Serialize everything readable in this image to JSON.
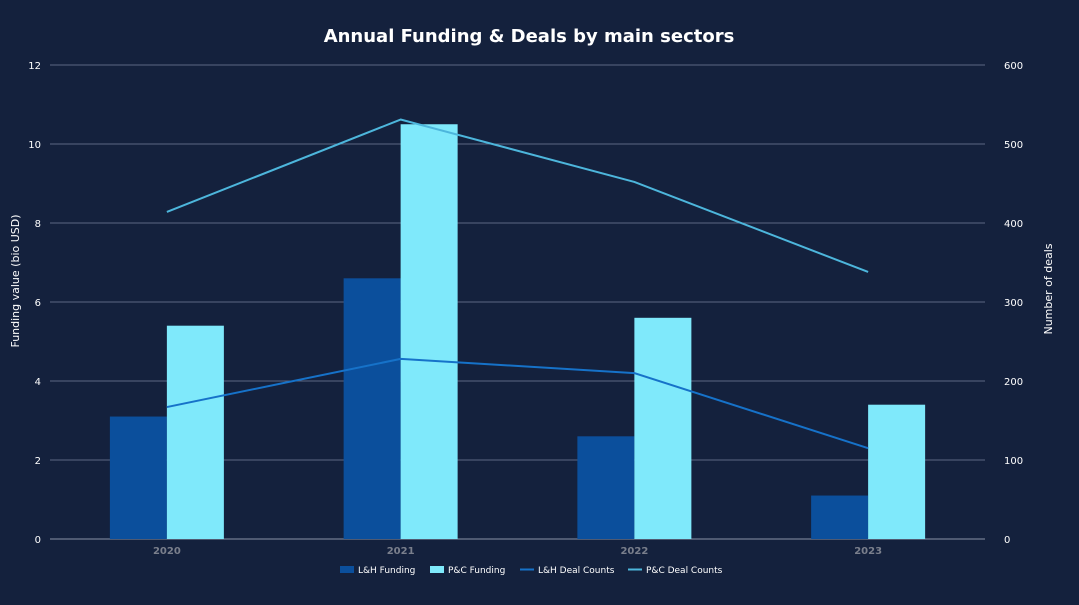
{
  "chart_data": {
    "type": "bar",
    "title": "Annual Funding & Deals by main sectors",
    "categories": [
      "2020",
      "2021",
      "2022",
      "2023"
    ],
    "y_left": {
      "label": "Funding value (bio USD)",
      "range": [
        0,
        12
      ],
      "ticks": [
        "0",
        "2",
        "4",
        "6",
        "8",
        "10",
        "12"
      ]
    },
    "y_right": {
      "label": "Number of deals",
      "range": [
        0,
        600
      ],
      "ticks": [
        "0",
        "100",
        "200",
        "300",
        "400",
        "500",
        "600"
      ]
    },
    "grid": true,
    "legend_position": "bottom",
    "series": [
      {
        "name": "L&H Funding",
        "type": "bar",
        "axis": "left",
        "color": "#0b4f9c",
        "values": [
          3.1,
          6.6,
          2.6,
          1.1
        ]
      },
      {
        "name": "P&C Funding",
        "type": "bar",
        "axis": "left",
        "color": "#7fe9fb",
        "values": [
          5.4,
          10.5,
          5.6,
          3.4
        ]
      },
      {
        "name": "L&H Deal Counts",
        "type": "line",
        "axis": "right",
        "color": "#1672c9",
        "values": [
          167,
          228,
          210,
          115
        ]
      },
      {
        "name": "P&C Deal Counts",
        "type": "line",
        "axis": "right",
        "color": "#4db6dc",
        "values": [
          414,
          531,
          452,
          338
        ]
      }
    ]
  }
}
